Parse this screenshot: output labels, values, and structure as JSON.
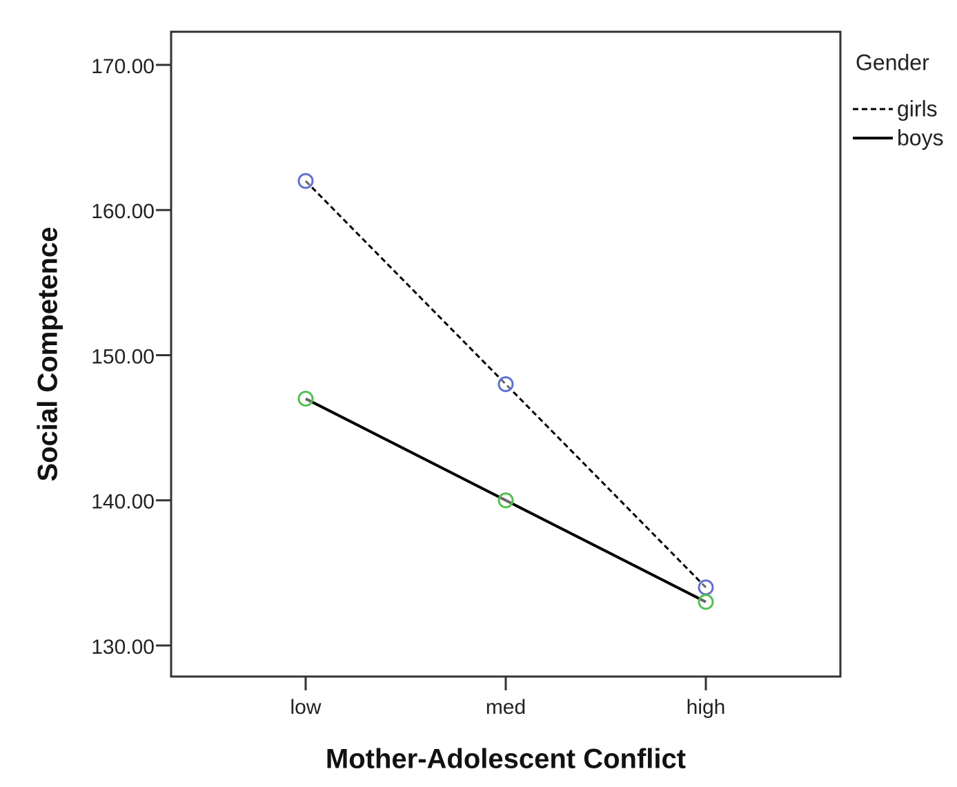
{
  "chart_data": {
    "type": "line",
    "x_label": "Mother-Adolescent Conflict",
    "y_label": "Social Competence",
    "categories": [
      "low",
      "med",
      "high"
    ],
    "series": [
      {
        "name": "girls",
        "color": "#000000",
        "marker_color": "#6070d0",
        "line_style": "dashed",
        "values": [
          162,
          148,
          134
        ]
      },
      {
        "name": "boys",
        "color": "#000000",
        "marker_color": "#50c050",
        "line_style": "solid",
        "values": [
          147,
          140,
          133
        ]
      }
    ],
    "ylim": [
      127.86,
      172.28
    ],
    "yticks": [
      {
        "value": 130,
        "label": "130.00"
      },
      {
        "value": 140,
        "label": "140.00"
      },
      {
        "value": 150,
        "label": "150.00"
      },
      {
        "value": 160,
        "label": "160.00"
      },
      {
        "value": 170,
        "label": "170.00"
      }
    ],
    "legend_title": "Gender",
    "legend_position": "right",
    "grid": false
  }
}
